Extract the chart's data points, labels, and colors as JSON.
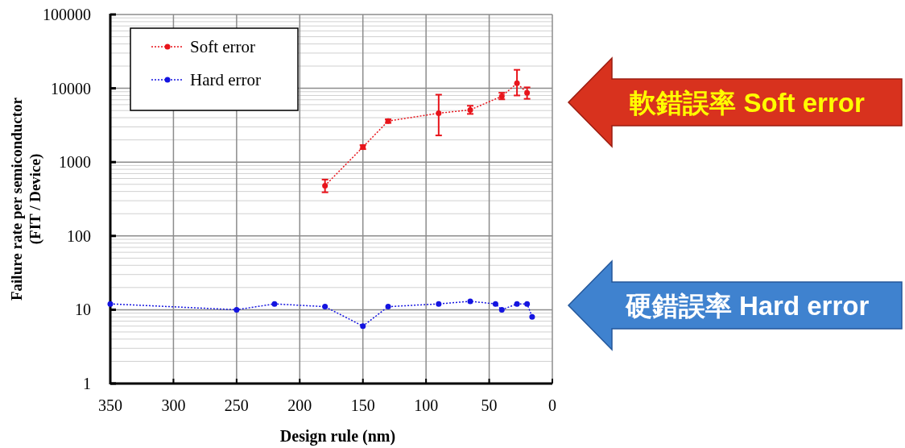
{
  "chart_data": {
    "type": "line",
    "xlabel": "Design rule (nm)",
    "ylabel": "Failure rate per semiconductor\n(FIT / Device)",
    "annotations": [
      "軟錯誤率 Soft error",
      "硬錯誤率 Hard error"
    ],
    "xlim": [
      350,
      0
    ],
    "xticks": [
      350,
      300,
      250,
      200,
      150,
      100,
      50,
      0
    ],
    "ylim": [
      1,
      100000
    ],
    "yticks": [
      1,
      10,
      100,
      1000,
      10000,
      100000
    ],
    "log": "y",
    "grid": true,
    "legend": "top left",
    "marker": "circle",
    "line_style": "dotted",
    "series": [
      {
        "name": "Soft error",
        "color": "#e8141b",
        "x": [
          180,
          150,
          130,
          90,
          65,
          40,
          28,
          20
        ],
        "values": [
          480,
          1600,
          3600,
          4600,
          5100,
          7800,
          11700,
          8700
        ],
        "errors": [
          [
            390,
            580
          ],
          [
            1500,
            1700
          ],
          [
            3400,
            3800
          ],
          [
            2300,
            8200
          ],
          [
            4500,
            5800
          ],
          [
            7100,
            8700
          ],
          [
            8000,
            17800
          ],
          [
            7200,
            10300
          ]
        ]
      },
      {
        "name": "Hard error",
        "color": "#1414e0",
        "x": [
          350,
          250,
          220,
          180,
          150,
          130,
          90,
          65,
          45,
          40,
          28,
          20,
          16
        ],
        "values": [
          12,
          10,
          12,
          11,
          6,
          11,
          12,
          13,
          12,
          10,
          12,
          12,
          8
        ]
      }
    ]
  }
}
